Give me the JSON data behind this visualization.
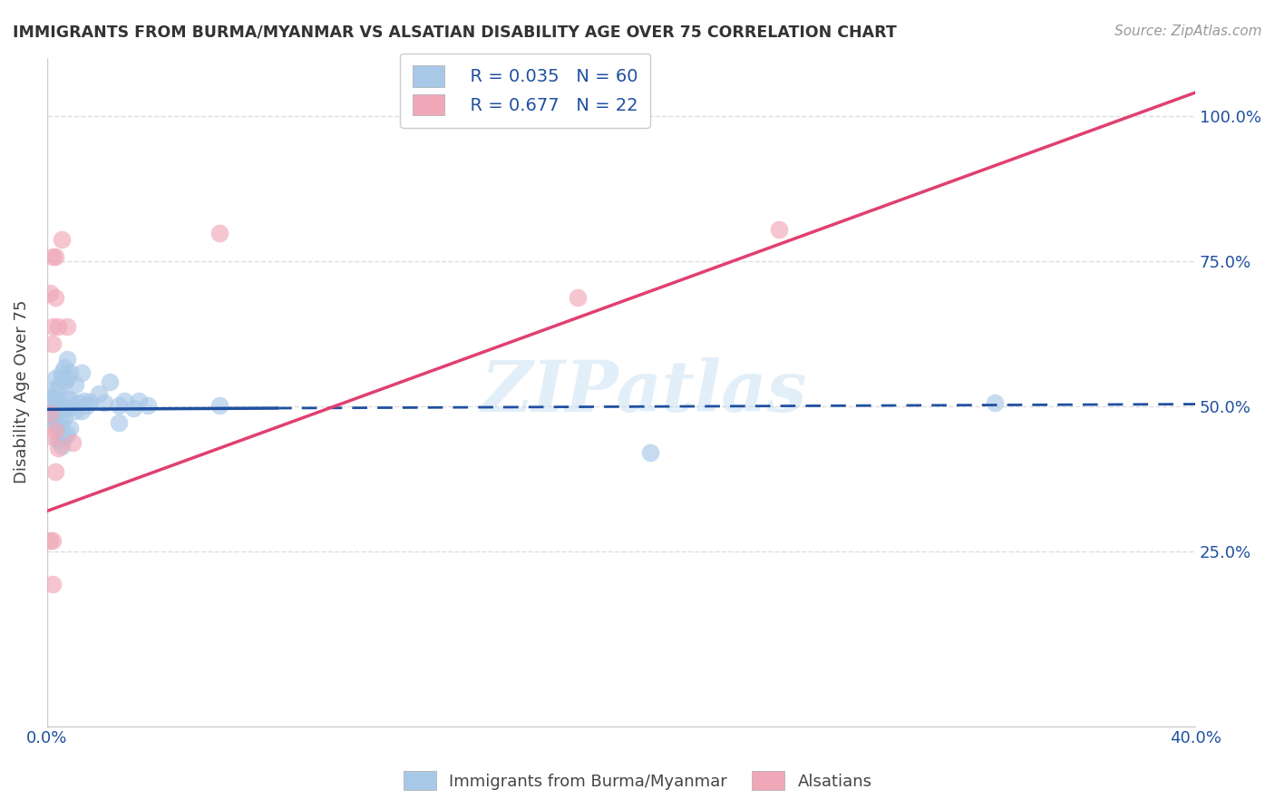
{
  "title": "IMMIGRANTS FROM BURMA/MYANMAR VS ALSATIAN DISABILITY AGE OVER 75 CORRELATION CHART",
  "source": "Source: ZipAtlas.com",
  "ylabel": "Disability Age Over 75",
  "watermark": "ZIPatlas",
  "legend_blue_r": "R = 0.035",
  "legend_blue_n": "N = 60",
  "legend_pink_r": "R = 0.677",
  "legend_pink_n": "N = 22",
  "legend_label_blue": "Immigrants from Burma/Myanmar",
  "legend_label_pink": "Alsatians",
  "blue_color": "#a8c8e8",
  "pink_color": "#f0a8b8",
  "blue_line_color": "#2050a0",
  "pink_line_color": "#e04070",
  "blue_scatter": [
    [
      0.001,
      0.5
    ],
    [
      0.001,
      0.497
    ],
    [
      0.001,
      0.482
    ],
    [
      0.001,
      0.512
    ],
    [
      0.002,
      0.505
    ],
    [
      0.002,
      0.492
    ],
    [
      0.002,
      0.502
    ],
    [
      0.002,
      0.518
    ],
    [
      0.002,
      0.478
    ],
    [
      0.002,
      0.473
    ],
    [
      0.003,
      0.512
    ],
    [
      0.003,
      0.502
    ],
    [
      0.003,
      0.497
    ],
    [
      0.003,
      0.532
    ],
    [
      0.003,
      0.548
    ],
    [
      0.003,
      0.492
    ],
    [
      0.004,
      0.502
    ],
    [
      0.004,
      0.532
    ],
    [
      0.004,
      0.492
    ],
    [
      0.004,
      0.462
    ],
    [
      0.004,
      0.472
    ],
    [
      0.004,
      0.442
    ],
    [
      0.005,
      0.548
    ],
    [
      0.005,
      0.558
    ],
    [
      0.005,
      0.502
    ],
    [
      0.005,
      0.472
    ],
    [
      0.005,
      0.432
    ],
    [
      0.006,
      0.568
    ],
    [
      0.006,
      0.542
    ],
    [
      0.006,
      0.497
    ],
    [
      0.006,
      0.482
    ],
    [
      0.006,
      0.447
    ],
    [
      0.007,
      0.582
    ],
    [
      0.007,
      0.548
    ],
    [
      0.007,
      0.512
    ],
    [
      0.007,
      0.497
    ],
    [
      0.007,
      0.452
    ],
    [
      0.008,
      0.558
    ],
    [
      0.008,
      0.512
    ],
    [
      0.008,
      0.462
    ],
    [
      0.01,
      0.537
    ],
    [
      0.01,
      0.492
    ],
    [
      0.011,
      0.507
    ],
    [
      0.012,
      0.558
    ],
    [
      0.012,
      0.492
    ],
    [
      0.013,
      0.51
    ],
    [
      0.014,
      0.502
    ],
    [
      0.015,
      0.508
    ],
    [
      0.018,
      0.522
    ],
    [
      0.02,
      0.507
    ],
    [
      0.022,
      0.542
    ],
    [
      0.025,
      0.502
    ],
    [
      0.025,
      0.472
    ],
    [
      0.027,
      0.51
    ],
    [
      0.03,
      0.497
    ],
    [
      0.032,
      0.51
    ],
    [
      0.035,
      0.502
    ],
    [
      0.06,
      0.502
    ],
    [
      0.21,
      0.42
    ],
    [
      0.33,
      0.507
    ]
  ],
  "pink_scatter": [
    [
      0.001,
      0.695
    ],
    [
      0.001,
      0.488
    ],
    [
      0.001,
      0.448
    ],
    [
      0.001,
      0.27
    ],
    [
      0.002,
      0.758
    ],
    [
      0.002,
      0.638
    ],
    [
      0.002,
      0.608
    ],
    [
      0.002,
      0.27
    ],
    [
      0.002,
      0.195
    ],
    [
      0.003,
      0.758
    ],
    [
      0.003,
      0.688
    ],
    [
      0.003,
      0.458
    ],
    [
      0.003,
      0.388
    ],
    [
      0.004,
      0.638
    ],
    [
      0.004,
      0.428
    ],
    [
      0.005,
      0.788
    ],
    [
      0.007,
      0.638
    ],
    [
      0.009,
      0.438
    ],
    [
      0.06,
      0.798
    ],
    [
      0.135,
      1.0
    ],
    [
      0.185,
      0.688
    ],
    [
      0.255,
      0.805
    ]
  ],
  "xlim": [
    0.0,
    0.4
  ],
  "ylim": [
    -0.05,
    1.1
  ],
  "yticks": [
    0.25,
    0.5,
    0.75,
    1.0
  ],
  "ytick_labels": [
    "25.0%",
    "50.0%",
    "75.0%",
    "100.0%"
  ],
  "xticks": [
    0.0,
    0.05,
    0.1,
    0.15,
    0.2,
    0.25,
    0.3,
    0.35,
    0.4
  ],
  "xtick_labels_show": [
    true,
    false,
    false,
    false,
    false,
    false,
    false,
    false,
    true
  ],
  "blue_trendline_solid": [
    [
      0.0,
      0.495
    ],
    [
      0.08,
      0.497
    ]
  ],
  "blue_trendline_dash": [
    [
      0.08,
      0.497
    ],
    [
      0.4,
      0.504
    ]
  ],
  "pink_trendline": [
    [
      0.0,
      0.32
    ],
    [
      0.4,
      1.04
    ]
  ],
  "grid_color": "#dddddd",
  "background_color": "#ffffff"
}
